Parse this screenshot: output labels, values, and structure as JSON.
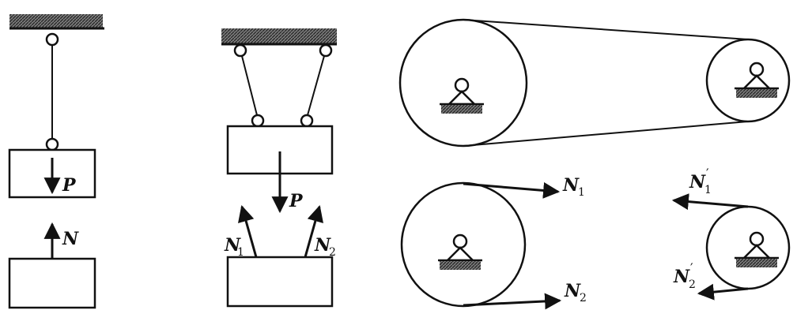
{
  "labels": {
    "p_left": "P",
    "n_left": "N",
    "p_mid": "P",
    "n1_mid": "N",
    "n1_mid_sub": "1",
    "n2_mid": "N",
    "n2_mid_sub": "2",
    "n1_right": "N",
    "n1_right_sub": "1",
    "n2_right": "N",
    "n2_right_sub": "2",
    "n1p_right": "N",
    "n1p_right_sup": "′",
    "n1p_right_sub": "1",
    "n2p_right": "N",
    "n2p_right_sup": "′",
    "n2p_right_sub": "2"
  },
  "colors": {
    "ink": "#111111",
    "hatch": "#555555",
    "background": "#ffffff"
  }
}
